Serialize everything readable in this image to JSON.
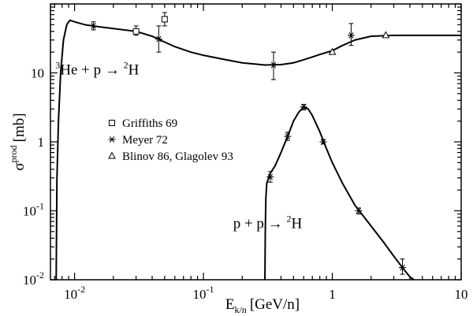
{
  "chart_data": {
    "type": "scatter",
    "title": "",
    "x_scale": "log",
    "y_scale": "log",
    "xlim": [
      0.0065,
      10
    ],
    "ylim": [
      0.01,
      100
    ],
    "grid": false,
    "legend_position": "middle-left",
    "xlabel": {
      "base": "E",
      "subscript": "k/n",
      "units": "[GeV/n]"
    },
    "ylabel": {
      "base": "σ",
      "superscript": "prod",
      "units": "[mb]"
    },
    "x_ticks": [
      {
        "value": 0.01,
        "base": "10",
        "exp": "-2"
      },
      {
        "value": 0.1,
        "base": "10",
        "exp": "-1"
      },
      {
        "value": 1,
        "base": "1",
        "exp": ""
      },
      {
        "value": 10,
        "base": "10",
        "exp": ""
      }
    ],
    "y_ticks": [
      {
        "value": 0.01,
        "base": "10",
        "exp": "-2"
      },
      {
        "value": 0.1,
        "base": "10",
        "exp": "-1"
      },
      {
        "value": 1,
        "base": "1",
        "exp": ""
      },
      {
        "value": 10,
        "base": "10",
        "exp": ""
      }
    ],
    "annotations": [
      {
        "id": "he",
        "pre_sup": "3",
        "pre": "He + p → ",
        "post_sup": "2",
        "post": "H",
        "x": 0.0071,
        "y": 9.5
      },
      {
        "id": "pp",
        "pre_sup": "",
        "pre": "p + p → ",
        "post_sup": "2",
        "post": "H",
        "x": 0.17,
        "y": 0.056
      }
    ],
    "legend": [
      {
        "marker": "square",
        "label": "Griffiths 69"
      },
      {
        "marker": "star",
        "label": "Meyer 72"
      },
      {
        "marker": "triangle",
        "label": "Blinov 86, Glagolev 93"
      }
    ],
    "curves": [
      {
        "name": "he-p-curve",
        "points": [
          [
            0.0072,
            0.01
          ],
          [
            0.0073,
            0.3
          ],
          [
            0.0075,
            2
          ],
          [
            0.0078,
            10
          ],
          [
            0.0082,
            30
          ],
          [
            0.0087,
            50
          ],
          [
            0.0092,
            58
          ],
          [
            0.01,
            55
          ],
          [
            0.012,
            50
          ],
          [
            0.015,
            47
          ],
          [
            0.02,
            44
          ],
          [
            0.03,
            40
          ],
          [
            0.04,
            34
          ],
          [
            0.05,
            28
          ],
          [
            0.06,
            24
          ],
          [
            0.08,
            20
          ],
          [
            0.1,
            18
          ],
          [
            0.15,
            15.5
          ],
          [
            0.2,
            14
          ],
          [
            0.3,
            13
          ],
          [
            0.4,
            13.2
          ],
          [
            0.5,
            14
          ],
          [
            0.6,
            15.5
          ],
          [
            0.7,
            17
          ],
          [
            0.8,
            18.5
          ],
          [
            1.0,
            21
          ],
          [
            1.2,
            25
          ],
          [
            1.5,
            30
          ],
          [
            2,
            34
          ],
          [
            3,
            35
          ],
          [
            5,
            35
          ],
          [
            10,
            35
          ]
        ]
      },
      {
        "name": "pp-curve",
        "points": [
          [
            0.3,
            0.01
          ],
          [
            0.302,
            0.05
          ],
          [
            0.305,
            0.15
          ],
          [
            0.31,
            0.25
          ],
          [
            0.33,
            0.35
          ],
          [
            0.36,
            0.45
          ],
          [
            0.4,
            0.7
          ],
          [
            0.45,
            1.2
          ],
          [
            0.5,
            2.0
          ],
          [
            0.55,
            2.7
          ],
          [
            0.6,
            3.2
          ],
          [
            0.65,
            3.0
          ],
          [
            0.7,
            2.4
          ],
          [
            0.8,
            1.4
          ],
          [
            0.9,
            0.8
          ],
          [
            1.0,
            0.5
          ],
          [
            1.2,
            0.25
          ],
          [
            1.5,
            0.12
          ],
          [
            2.0,
            0.06
          ],
          [
            2.5,
            0.035
          ],
          [
            3.0,
            0.022
          ],
          [
            3.5,
            0.015
          ],
          [
            4.0,
            0.011
          ],
          [
            4.3,
            0.01
          ]
        ]
      }
    ],
    "series": [
      {
        "marker": "square",
        "points": [
          {
            "x": 0.03,
            "y": 40,
            "ylo": 35,
            "yhi": 48
          },
          {
            "x": 0.05,
            "y": 60,
            "ylo": 48,
            "yhi": 75
          }
        ]
      },
      {
        "marker": "star",
        "points": [
          {
            "x": 0.014,
            "y": 48,
            "ylo": 42,
            "yhi": 55
          },
          {
            "x": 0.045,
            "y": 31,
            "ylo": 20,
            "yhi": 48
          },
          {
            "x": 0.35,
            "y": 13,
            "ylo": 8,
            "yhi": 20
          },
          {
            "x": 1.4,
            "y": 35,
            "ylo": 25,
            "yhi": 52
          },
          {
            "x": 0.33,
            "y": 0.31,
            "ylo": 0.26,
            "yhi": 0.37
          },
          {
            "x": 0.45,
            "y": 1.2,
            "ylo": 1.05,
            "yhi": 1.38
          },
          {
            "x": 0.6,
            "y": 3.2,
            "ylo": 2.9,
            "yhi": 3.5
          },
          {
            "x": 0.85,
            "y": 1.0,
            "ylo": 0.93,
            "yhi": 1.08
          },
          {
            "x": 1.6,
            "y": 0.1,
            "ylo": 0.09,
            "yhi": 0.11
          },
          {
            "x": 3.5,
            "y": 0.015,
            "ylo": 0.012,
            "yhi": 0.02
          }
        ]
      },
      {
        "marker": "triangle",
        "points": [
          {
            "x": 1.0,
            "y": 20
          },
          {
            "x": 2.6,
            "y": 35
          }
        ]
      }
    ]
  }
}
